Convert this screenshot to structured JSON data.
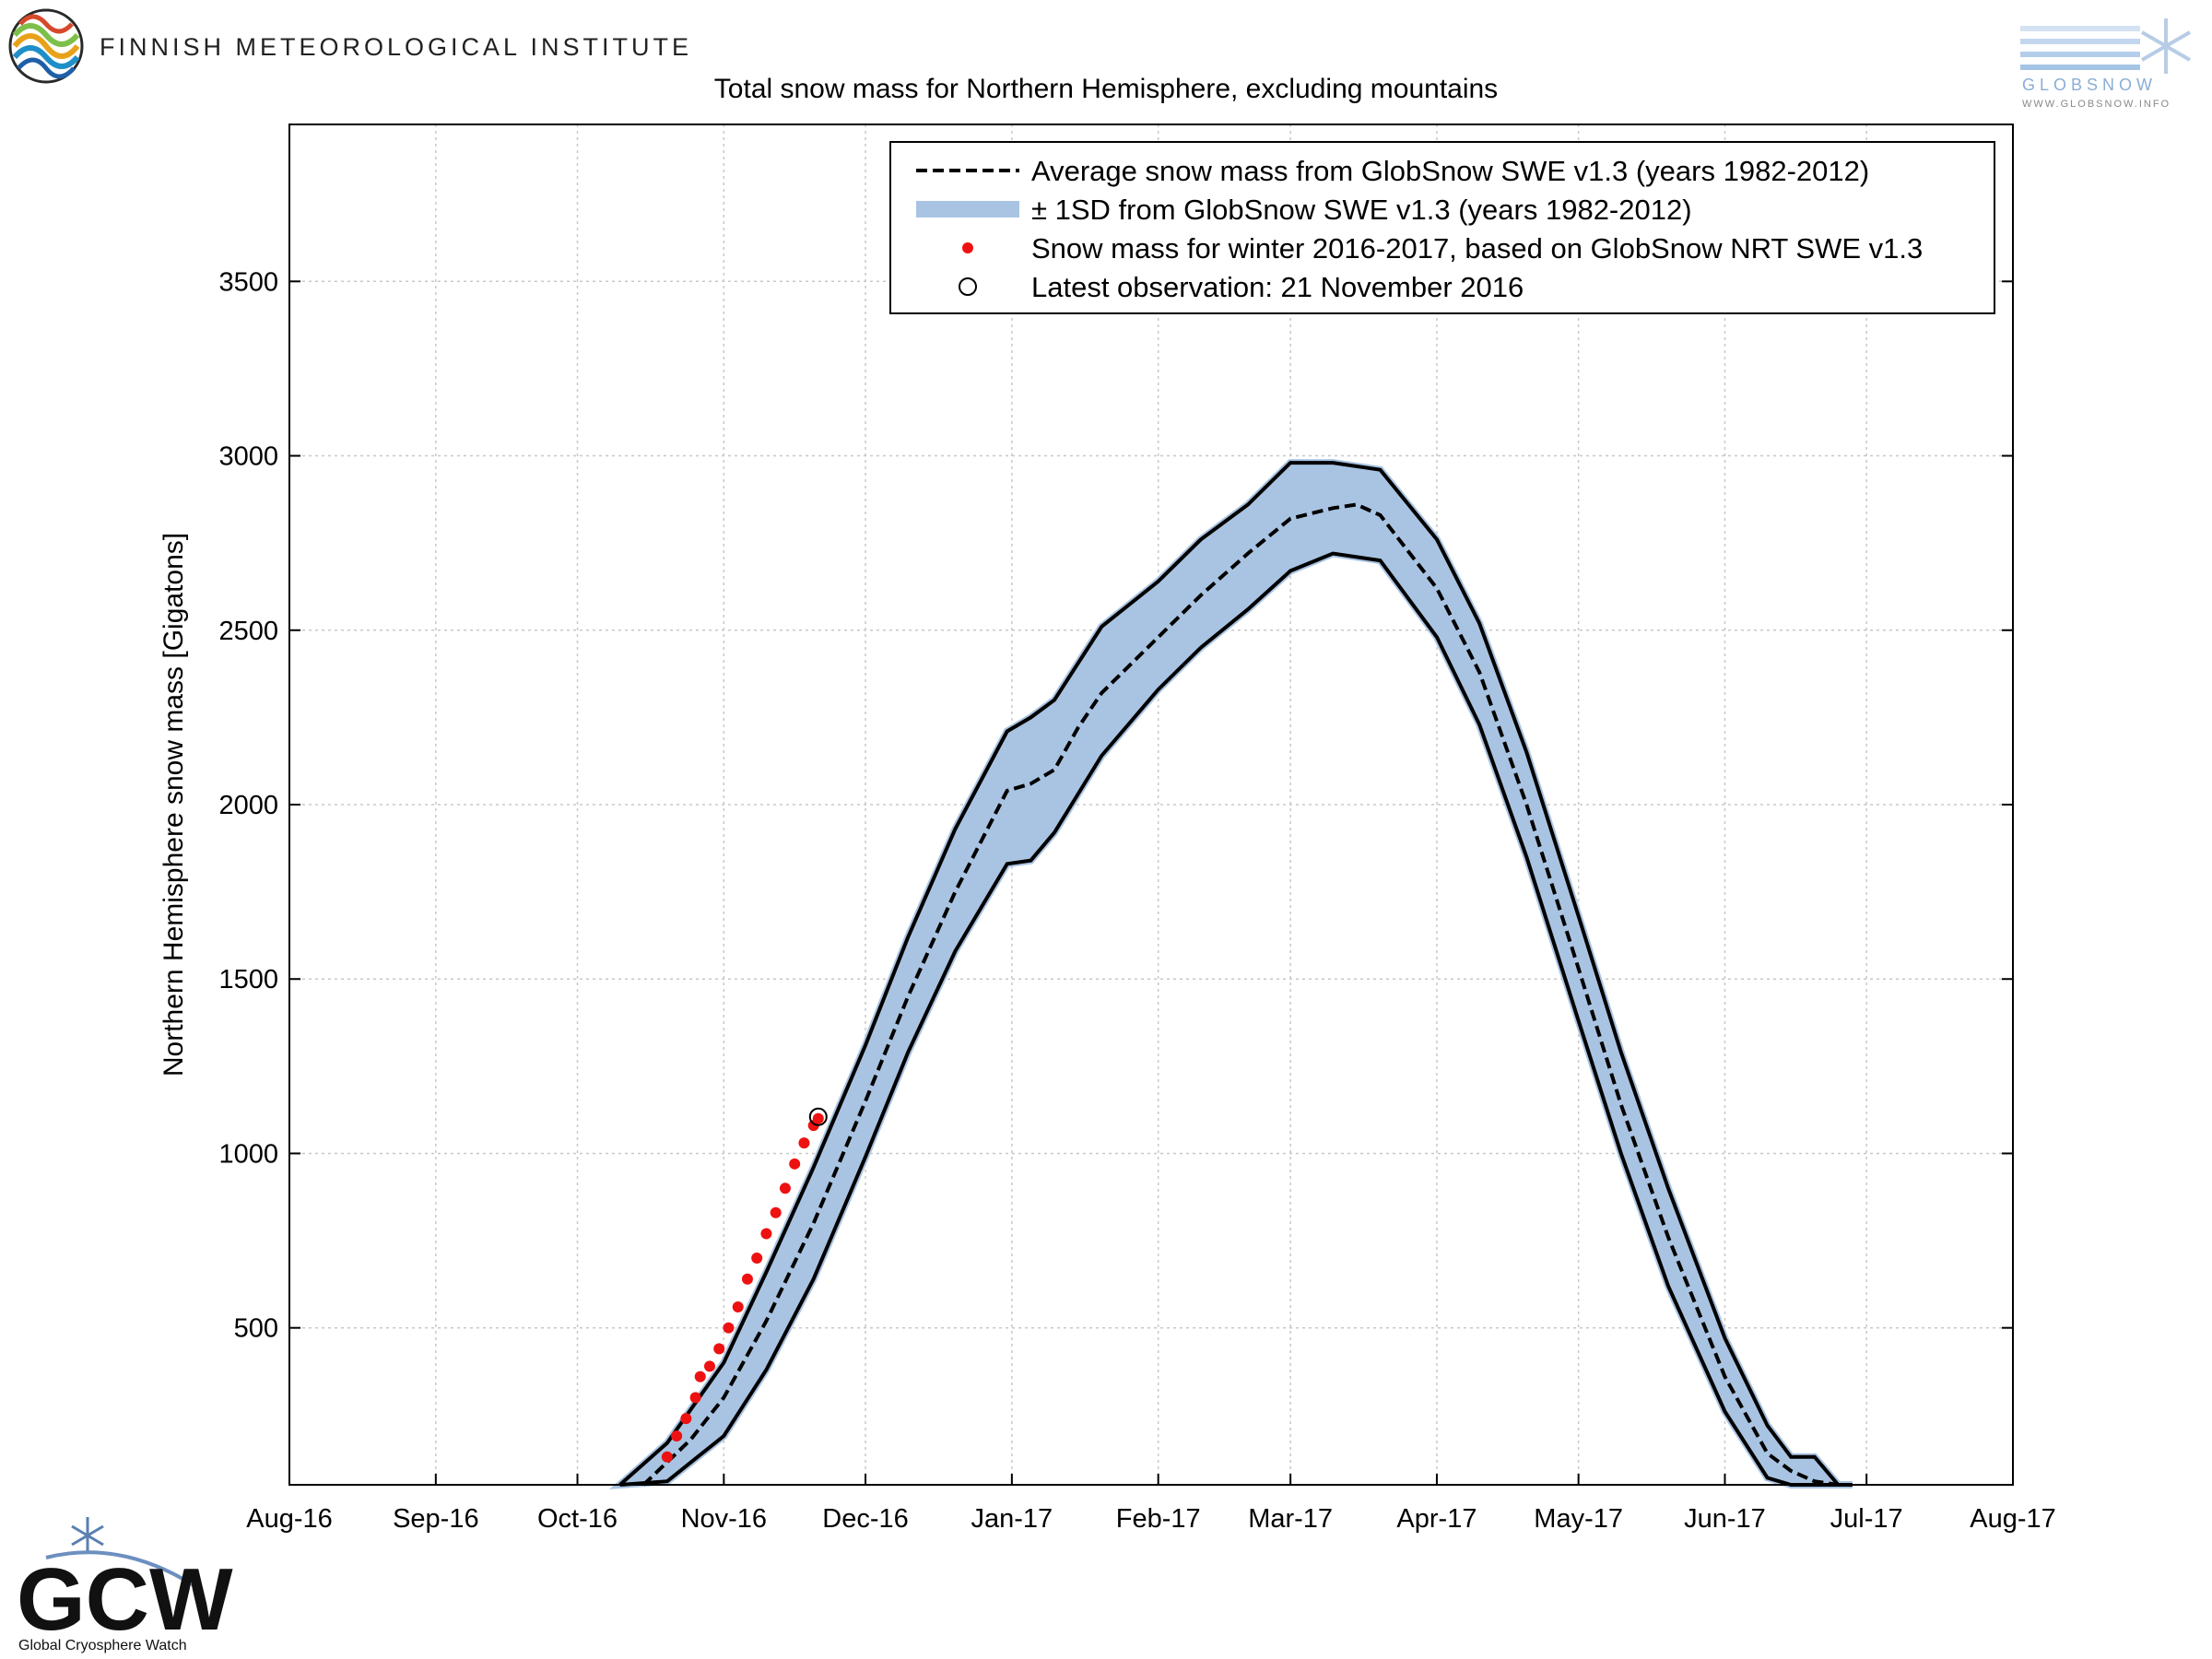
{
  "header": {
    "institute_name": "FINNISH METEOROLOGICAL INSTITUTE",
    "globsnow_logo_text": "GLOBSNOW",
    "globsnow_url": "WWW.GLOBSNOW.INFO"
  },
  "footer": {
    "gcw_acronym": "GCW",
    "gcw_name": "Global Cryosphere Watch"
  },
  "colors": {
    "sd_band": "#a9c4e2",
    "observations": "#ee1111",
    "lines": "#000000"
  },
  "chart_data": {
    "type": "line",
    "title": "Total snow mass for Northern Hemisphere, excluding mountains",
    "xlabel": "",
    "ylabel": "Northern Hemisphere snow mass [Gigatons]",
    "x_tick_labels": [
      "Aug-16",
      "Sep-16",
      "Oct-16",
      "Nov-16",
      "Dec-16",
      "Jan-17",
      "Feb-17",
      "Mar-17",
      "Apr-17",
      "May-17",
      "Jun-17",
      "Jul-17",
      "Aug-17"
    ],
    "xlim": [
      "2016-08-01",
      "2017-08-01"
    ],
    "y_ticks": [
      500,
      1000,
      1500,
      2000,
      2500,
      3000,
      3500
    ],
    "ylim": [
      50,
      3950
    ],
    "grid": true,
    "legend_position": "top-right",
    "legend": [
      "Average snow mass from GlobSnow SWE v1.3 (years 1982-2012)",
      "± 1SD from GlobSnow SWE v1.3 (years 1982-2012)",
      "Snow mass for winter 2016-2017, based on GlobSnow NRT SWE v1.3",
      "Latest observation: 21 November 2016"
    ],
    "series": [
      {
        "name": "Average snow mass from GlobSnow SWE v1.3 (years 1982-2012)",
        "x": [
          "2016-10-15",
          "2016-10-25",
          "2016-11-01",
          "2016-11-10",
          "2016-11-20",
          "2016-12-01",
          "2016-12-10",
          "2016-12-20",
          "2016-12-31",
          "2017-01-05",
          "2017-01-10",
          "2017-01-15",
          "2017-01-20",
          "2017-02-01",
          "2017-02-10",
          "2017-02-20",
          "2017-03-01",
          "2017-03-10",
          "2017-03-15",
          "2017-03-20",
          "2017-04-01",
          "2017-04-10",
          "2017-04-20",
          "2017-05-01",
          "2017-05-10",
          "2017-05-20",
          "2017-06-01",
          "2017-06-10",
          "2017-06-15",
          "2017-06-20",
          "2017-06-25"
        ],
        "values": [
          50,
          180,
          300,
          520,
          800,
          1150,
          1450,
          1750,
          2040,
          2060,
          2100,
          2220,
          2320,
          2480,
          2600,
          2720,
          2820,
          2850,
          2860,
          2830,
          2620,
          2380,
          2000,
          1530,
          1140,
          760,
          360,
          140,
          90,
          60,
          50
        ]
      },
      {
        "name": "± 1SD from GlobSnow SWE v1.3 (years 1982-2012)",
        "x": [
          "2016-10-10",
          "2016-10-20",
          "2016-11-01",
          "2016-11-10",
          "2016-11-20",
          "2016-12-01",
          "2016-12-10",
          "2016-12-20",
          "2016-12-31",
          "2017-01-05",
          "2017-01-10",
          "2017-01-20",
          "2017-02-01",
          "2017-02-10",
          "2017-02-20",
          "2017-03-01",
          "2017-03-10",
          "2017-03-20",
          "2017-04-01",
          "2017-04-10",
          "2017-04-20",
          "2017-05-01",
          "2017-05-10",
          "2017-05-20",
          "2017-06-01",
          "2017-06-10",
          "2017-06-15",
          "2017-06-20",
          "2017-06-25",
          "2017-06-28"
        ],
        "upper": [
          50,
          170,
          400,
          660,
          960,
          1310,
          1620,
          1930,
          2210,
          2250,
          2300,
          2510,
          2640,
          2760,
          2860,
          2980,
          2980,
          2960,
          2760,
          2520,
          2150,
          1680,
          1290,
          900,
          470,
          220,
          130,
          130,
          50,
          50
        ],
        "lower": [
          50,
          60,
          190,
          380,
          640,
          990,
          1290,
          1580,
          1830,
          1840,
          1920,
          2140,
          2330,
          2450,
          2560,
          2670,
          2720,
          2700,
          2480,
          2230,
          1850,
          1380,
          1000,
          620,
          260,
          70,
          50,
          50,
          50,
          50
        ]
      },
      {
        "name": "Snow mass for winter 2016-2017, based on GlobSnow NRT SWE v1.3",
        "x": [
          "2016-10-20",
          "2016-10-22",
          "2016-10-24",
          "2016-10-26",
          "2016-10-27",
          "2016-10-29",
          "2016-10-31",
          "2016-11-02",
          "2016-11-04",
          "2016-11-06",
          "2016-11-08",
          "2016-11-10",
          "2016-11-12",
          "2016-11-14",
          "2016-11-16",
          "2016-11-18",
          "2016-11-20",
          "2016-11-21"
        ],
        "values": [
          130,
          190,
          240,
          300,
          360,
          390,
          440,
          500,
          560,
          640,
          700,
          770,
          830,
          900,
          970,
          1030,
          1080,
          1100
        ]
      },
      {
        "name": "Latest observation: 21 November 2016",
        "x": [
          "2016-11-21"
        ],
        "values": [
          1105
        ]
      }
    ]
  }
}
